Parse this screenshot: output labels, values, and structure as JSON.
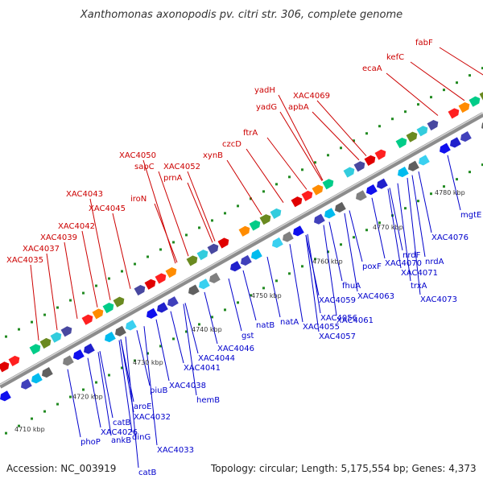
{
  "title": "Xanthomonas axonopodis pv. citri str. 306, complete genome",
  "footer": {
    "accession": "Accession: NC_003919",
    "topology": "Topology: circular; Length: 5,175,554 bp; Genes: 4,373"
  },
  "colors": {
    "forward_label": "#cc0000",
    "reverse_label": "#0000cc",
    "backbone": "#8c8c8c",
    "dots": "#228b22"
  },
  "ticks": [
    "4710 kbp",
    "4720 kbp",
    "4730 kbp",
    "4740 kbp",
    "4750 kbp",
    "4760 kbp",
    "4770 kbp",
    "4780 kbp"
  ],
  "forward_labels": [
    "XAC4035",
    "XAC4037",
    "XAC4039",
    "XAC4042",
    "XAC4045",
    "XAC4043",
    "iroN",
    "prnA",
    "XAC4052",
    "sapC",
    "XAC4050",
    "xynB",
    "czcD",
    "ftrA",
    "yadG",
    "yadH",
    "apbA",
    "XAC4069",
    "ecaA",
    "kefC",
    "fabF"
  ],
  "reverse_labels": [
    "phoP",
    "ankB",
    "XAC4026",
    "catB",
    "dinG",
    "catB",
    "XAC4033",
    "aroE",
    "XAC4032",
    "piuB",
    "XAC4038",
    "hemB",
    "XAC4041",
    "XAC4044",
    "XAC4046",
    "gst",
    "natB",
    "natA",
    "XAC4055",
    "XAC4056",
    "XAC4057",
    "XAC4059",
    "fhuA",
    "XAC4061",
    "XAC4063",
    "poxF",
    "XAC4070",
    "XAC4071",
    "nrdF",
    "nrdA",
    "trxA",
    "XAC4073",
    "XAC4076",
    "mgtE"
  ]
}
